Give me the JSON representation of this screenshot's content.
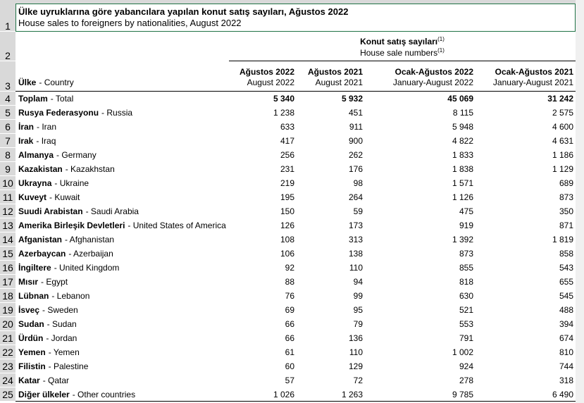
{
  "title": {
    "tr": "Ülke uyruklarına göre yabancılara yapılan konut satış sayıları, Ağustos 2022",
    "en": "House sales to foreigners by nationalities, August 2022"
  },
  "header": {
    "group": {
      "tr": "Konut satış sayıları",
      "tr_note": "(1)",
      "en": "House sale numbers",
      "en_note": "(1)"
    },
    "country": {
      "tr": "Ülke",
      "en": "- Country"
    },
    "columns": [
      {
        "tr": "Ağustos 2022",
        "en": "August 2022"
      },
      {
        "tr": "Ağustos 2021",
        "en": "August 2021"
      },
      {
        "tr": "Ocak-Ağustos 2022",
        "en": "January-August 2022"
      },
      {
        "tr": "Ocak-Ağustos 2021",
        "en": "January-August 2021"
      }
    ]
  },
  "rows": [
    {
      "tr": "Toplam",
      "en": "- Total",
      "values": [
        "5 340",
        "5 932",
        "45 069",
        "31 242"
      ]
    },
    {
      "tr": "Rusya Federasyonu",
      "en": "- Russia",
      "values": [
        "1 238",
        "451",
        "8 115",
        "2 575"
      ]
    },
    {
      "tr": "İran",
      "en": "- Iran",
      "values": [
        "633",
        "911",
        "5 948",
        "4 600"
      ]
    },
    {
      "tr": "Irak",
      "en": "- Iraq",
      "values": [
        "417",
        "900",
        "4 822",
        "4 631"
      ]
    },
    {
      "tr": "Almanya",
      "en": "- Germany",
      "values": [
        "256",
        "262",
        "1 833",
        "1 186"
      ]
    },
    {
      "tr": "Kazakistan",
      "en": "- Kazakhstan",
      "values": [
        "231",
        "176",
        "1 838",
        "1 129"
      ]
    },
    {
      "tr": "Ukrayna",
      "en": "- Ukraine",
      "values": [
        "219",
        "98",
        "1 571",
        "689"
      ]
    },
    {
      "tr": "Kuveyt",
      "en": "- Kuwait",
      "values": [
        "195",
        "264",
        "1 126",
        "873"
      ]
    },
    {
      "tr": "Suudi Arabistan",
      "en": "- Saudi Arabia",
      "values": [
        "150",
        "59",
        "475",
        "350"
      ]
    },
    {
      "tr": "Amerika Birleşik Devletleri",
      "en": "- United States of America",
      "values": [
        "126",
        "173",
        "919",
        "871"
      ]
    },
    {
      "tr": "Afganistan",
      "en": "- Afghanistan",
      "values": [
        "108",
        "313",
        "1 392",
        "1 819"
      ]
    },
    {
      "tr": "Azerbaycan",
      "en": "- Azerbaijan",
      "values": [
        "106",
        "138",
        "873",
        "858"
      ]
    },
    {
      "tr": "İngiltere",
      "en": "- United Kingdom",
      "values": [
        "92",
        "110",
        "855",
        "543"
      ]
    },
    {
      "tr": "Mısır",
      "en": "- Egypt",
      "values": [
        "88",
        "94",
        "818",
        "655"
      ]
    },
    {
      "tr": "Lübnan",
      "en": "- Lebanon",
      "values": [
        "76",
        "99",
        "630",
        "545"
      ]
    },
    {
      "tr": "İsveç",
      "en": "- Sweden",
      "values": [
        "69",
        "95",
        "521",
        "488"
      ]
    },
    {
      "tr": "Sudan",
      "en": "- Sudan",
      "values": [
        "66",
        "79",
        "553",
        "394"
      ]
    },
    {
      "tr": "Ürdün",
      "en": "- Jordan",
      "values": [
        "66",
        "136",
        "791",
        "674"
      ]
    },
    {
      "tr": "Yemen",
      "en": "- Yemen",
      "values": [
        "61",
        "110",
        "1 002",
        "810"
      ]
    },
    {
      "tr": "Filistin",
      "en": "- Palestine",
      "values": [
        "60",
        "129",
        "924",
        "744"
      ]
    },
    {
      "tr": "Katar",
      "en": "- Qatar",
      "values": [
        "57",
        "72",
        "278",
        "318"
      ]
    },
    {
      "tr": "Diğer ülkeler",
      "en": "- Other countries",
      "values": [
        "1 026",
        "1 263",
        "9 785",
        "6 490"
      ]
    }
  ],
  "row_numbers": [
    1,
    2,
    3,
    4,
    5,
    6,
    7,
    8,
    9,
    10,
    11,
    12,
    13,
    14,
    15,
    16,
    17,
    18,
    19,
    20,
    21,
    22,
    23,
    24,
    25
  ]
}
